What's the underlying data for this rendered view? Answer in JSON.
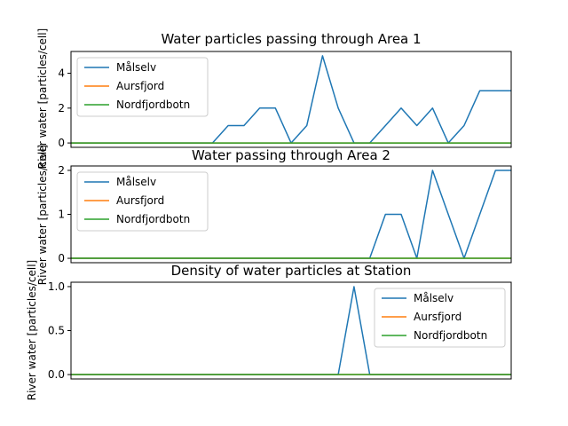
{
  "figure": {
    "width": 640,
    "height": 480,
    "background": "#ffffff"
  },
  "chart_data": [
    {
      "type": "line",
      "title": "Water particles passing through Area 1",
      "xlabel": "",
      "ylabel": "River water [particles/cell]",
      "x_ticks_shown": false,
      "ylim": [
        -0.25,
        5.25
      ],
      "xlim": [
        0,
        28
      ],
      "yticks": [
        0,
        2,
        4
      ],
      "ytick_labels": [
        "0",
        "2",
        "4"
      ],
      "legend": "upper-left",
      "grid": false,
      "x": [
        0,
        1,
        2,
        3,
        4,
        5,
        6,
        7,
        8,
        9,
        10,
        11,
        12,
        13,
        14,
        15,
        16,
        17,
        18,
        19,
        20,
        21,
        22,
        23,
        24,
        25,
        26,
        27,
        28
      ],
      "series": [
        {
          "name": "Målselv",
          "color": "#1f77b4",
          "values": [
            0,
            0,
            0,
            0,
            0,
            0,
            0,
            0,
            0,
            0,
            1,
            1,
            2,
            2,
            0,
            1,
            5,
            2,
            0,
            0,
            1,
            2,
            1,
            2,
            0,
            1,
            3,
            3,
            3
          ]
        },
        {
          "name": "Aursfjord",
          "color": "#ff7f0e",
          "values": [
            0,
            0,
            0,
            0,
            0,
            0,
            0,
            0,
            0,
            0,
            0,
            0,
            0,
            0,
            0,
            0,
            0,
            0,
            0,
            0,
            0,
            0,
            0,
            0,
            0,
            0,
            0,
            0,
            0
          ]
        },
        {
          "name": "Nordfjordbotn",
          "color": "#2ca02c",
          "values": [
            0,
            0,
            0,
            0,
            0,
            0,
            0,
            0,
            0,
            0,
            0,
            0,
            0,
            0,
            0,
            0,
            0,
            0,
            0,
            0,
            0,
            0,
            0,
            0,
            0,
            0,
            0,
            0,
            0
          ]
        }
      ]
    },
    {
      "type": "line",
      "title": "Water passing through Area 2",
      "xlabel": "",
      "ylabel": "River water [particles/cell]",
      "x_ticks_shown": false,
      "ylim": [
        -0.1,
        2.1
      ],
      "xlim": [
        0,
        28
      ],
      "yticks": [
        0,
        1,
        2
      ],
      "ytick_labels": [
        "0",
        "1",
        "2"
      ],
      "legend": "upper-left",
      "grid": false,
      "x": [
        0,
        1,
        2,
        3,
        4,
        5,
        6,
        7,
        8,
        9,
        10,
        11,
        12,
        13,
        14,
        15,
        16,
        17,
        18,
        19,
        20,
        21,
        22,
        23,
        24,
        25,
        26,
        27,
        28
      ],
      "series": [
        {
          "name": "Målselv",
          "color": "#1f77b4",
          "values": [
            0,
            0,
            0,
            0,
            0,
            0,
            0,
            0,
            0,
            0,
            0,
            0,
            0,
            0,
            0,
            0,
            0,
            0,
            0,
            0,
            1,
            1,
            0,
            2,
            1,
            0,
            1,
            2,
            2
          ]
        },
        {
          "name": "Aursfjord",
          "color": "#ff7f0e",
          "values": [
            0,
            0,
            0,
            0,
            0,
            0,
            0,
            0,
            0,
            0,
            0,
            0,
            0,
            0,
            0,
            0,
            0,
            0,
            0,
            0,
            0,
            0,
            0,
            0,
            0,
            0,
            0,
            0,
            0
          ]
        },
        {
          "name": "Nordfjordbotn",
          "color": "#2ca02c",
          "values": [
            0,
            0,
            0,
            0,
            0,
            0,
            0,
            0,
            0,
            0,
            0,
            0,
            0,
            0,
            0,
            0,
            0,
            0,
            0,
            0,
            0,
            0,
            0,
            0,
            0,
            0,
            0,
            0,
            0
          ]
        }
      ]
    },
    {
      "type": "line",
      "title": "Density of water particles at Station",
      "xlabel": "",
      "ylabel": "River water [particles/cell]",
      "x_ticks_shown": false,
      "ylim": [
        -0.05,
        1.05
      ],
      "xlim": [
        0,
        28
      ],
      "yticks": [
        0,
        0.5,
        1.0
      ],
      "ytick_labels": [
        "0.0",
        "0.5",
        "1.0"
      ],
      "legend": "upper-right",
      "grid": false,
      "x": [
        0,
        1,
        2,
        3,
        4,
        5,
        6,
        7,
        8,
        9,
        10,
        11,
        12,
        13,
        14,
        15,
        16,
        17,
        18,
        19,
        20,
        21,
        22,
        23,
        24,
        25,
        26,
        27,
        28
      ],
      "series": [
        {
          "name": "Målselv",
          "color": "#1f77b4",
          "values": [
            0,
            0,
            0,
            0,
            0,
            0,
            0,
            0,
            0,
            0,
            0,
            0,
            0,
            0,
            0,
            0,
            0,
            0,
            1,
            0,
            0,
            0,
            0,
            0,
            0,
            0,
            0,
            0,
            0
          ]
        },
        {
          "name": "Aursfjord",
          "color": "#ff7f0e",
          "values": [
            0,
            0,
            0,
            0,
            0,
            0,
            0,
            0,
            0,
            0,
            0,
            0,
            0,
            0,
            0,
            0,
            0,
            0,
            0,
            0,
            0,
            0,
            0,
            0,
            0,
            0,
            0,
            0,
            0
          ]
        },
        {
          "name": "Nordfjordbotn",
          "color": "#2ca02c",
          "values": [
            0,
            0,
            0,
            0,
            0,
            0,
            0,
            0,
            0,
            0,
            0,
            0,
            0,
            0,
            0,
            0,
            0,
            0,
            0,
            0,
            0,
            0,
            0,
            0,
            0,
            0,
            0,
            0,
            0
          ]
        }
      ]
    }
  ]
}
